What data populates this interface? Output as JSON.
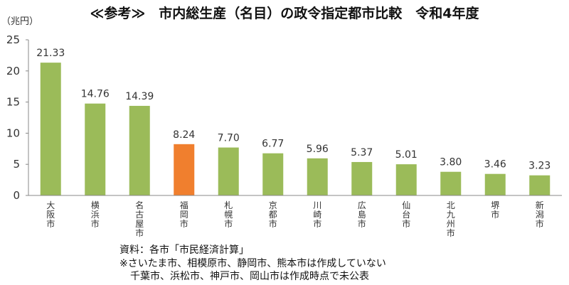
{
  "chart_data": {
    "type": "bar",
    "title": "≪参考≫　市内総生産（名目）の政令指定都市比較　令和4年度",
    "ylabel": "（兆円）",
    "xlabel": "",
    "ylim": [
      0,
      25
    ],
    "yticks": [
      0,
      5,
      10,
      15,
      20,
      25
    ],
    "grid": false,
    "categories": [
      "大阪市",
      "横浜市",
      "名古屋市",
      "福岡市",
      "札幌市",
      "京都市",
      "川崎市",
      "広島市",
      "仙台市",
      "北九州市",
      "堺市",
      "新潟市"
    ],
    "values": [
      21.33,
      14.76,
      14.39,
      8.24,
      7.7,
      6.77,
      5.96,
      5.37,
      5.01,
      3.8,
      3.46,
      3.23
    ],
    "value_labels": [
      "21.33",
      "14.76",
      "14.39",
      "8.24",
      "7.70",
      "6.77",
      "5.96",
      "5.37",
      "5.01",
      "3.80",
      "3.46",
      "3.23"
    ],
    "highlight": "福岡市"
  },
  "colors": {
    "bar": "#9BBB59",
    "highlight": "#F07F2E",
    "axis": "#888888",
    "text": "#333333"
  },
  "footnotes": {
    "source": "資料：各市「市民経済計算」",
    "note_line1": "※さいたま市、相模原市、静岡市、熊本市は作成していない",
    "note_line2": "千葉市、浜松市、神戸市、岡山市は作成時点で未公表"
  }
}
